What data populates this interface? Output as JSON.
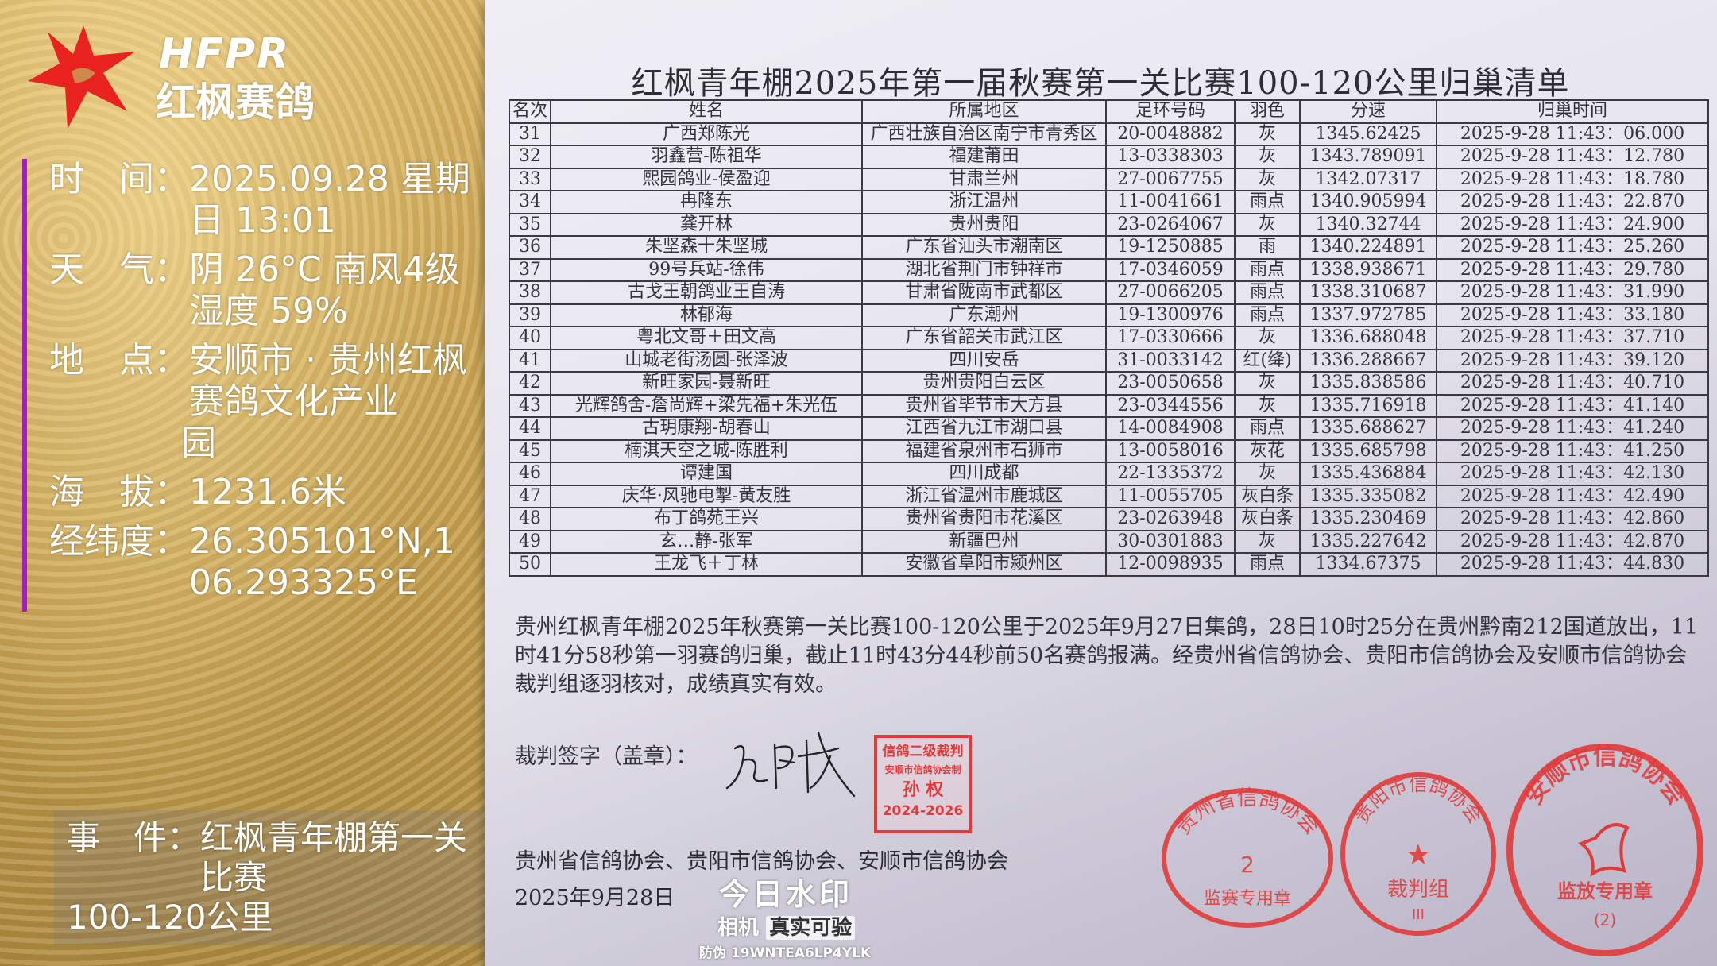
{
  "document": {
    "title": "红枫青年棚2025年第一届秋赛第一关比赛100-120公里归巢清单",
    "columns": [
      "名次",
      "姓名",
      "所属地区",
      "足环号码",
      "羽色",
      "分速",
      "归巢时间"
    ],
    "rows": [
      [
        "31",
        "广西郑陈光",
        "广西壮族自治区南宁市青秀区",
        "20-0048882",
        "灰",
        "1345.62425",
        "2025-9-28 11:43：06.000"
      ],
      [
        "32",
        "羽鑫营-陈祖华",
        "福建莆田",
        "13-0338303",
        "灰",
        "1343.789091",
        "2025-9-28 11:43：12.780"
      ],
      [
        "33",
        "熙园鸽业-侯盈迎",
        "甘肃兰州",
        "27-0067755",
        "灰",
        "1342.07317",
        "2025-9-28 11:43：18.780"
      ],
      [
        "34",
        "冉隆东",
        "浙江温州",
        "11-0041661",
        "雨点",
        "1340.905994",
        "2025-9-28 11:43：22.870"
      ],
      [
        "35",
        "龚开林",
        "贵州贵阳",
        "23-0264067",
        "灰",
        "1340.32744",
        "2025-9-28 11:43：24.900"
      ],
      [
        "36",
        "朱坚森十朱坚城",
        "广东省汕头市潮南区",
        "19-1250885",
        "雨",
        "1340.224891",
        "2025-9-28 11:43：25.260"
      ],
      [
        "37",
        "99号兵站-徐伟",
        "湖北省荆门市钟祥市",
        "17-0346059",
        "雨点",
        "1338.938671",
        "2025-9-28 11:43：29.780"
      ],
      [
        "38",
        "古戈王朝鸽业王自涛",
        "甘肃省陇南市武都区",
        "27-0066205",
        "雨点",
        "1338.310687",
        "2025-9-28 11:43：31.990"
      ],
      [
        "39",
        "林郁海",
        "广东潮州",
        "19-1300976",
        "雨点",
        "1337.972785",
        "2025-9-28 11:43：33.180"
      ],
      [
        "40",
        "粤北文哥＋田文高",
        "广东省韶关市武江区",
        "17-0330666",
        "灰",
        "1336.688048",
        "2025-9-28 11:43：37.710"
      ],
      [
        "41",
        "山城老街汤圆-张泽波",
        "四川安岳",
        "31-0033142",
        "红(绛)",
        "1336.288667",
        "2025-9-28 11:43：39.120"
      ],
      [
        "42",
        "新旺家园-聂新旺",
        "贵州贵阳白云区",
        "23-0050658",
        "灰",
        "1335.838586",
        "2025-9-28 11:43：40.710"
      ],
      [
        "43",
        "光辉鸽舍-詹尚辉+梁先福+朱光伍",
        "贵州省毕节市大方县",
        "23-0344556",
        "灰",
        "1335.716918",
        "2025-9-28 11:43：41.140"
      ],
      [
        "44",
        "古玥康翔-胡春山",
        "江西省九江市湖口县",
        "14-0084908",
        "雨点",
        "1335.688627",
        "2025-9-28 11:43：41.240"
      ],
      [
        "45",
        "楠淇天空之城-陈胜利",
        "福建省泉州市石狮市",
        "13-0058016",
        "灰花",
        "1335.685798",
        "2025-9-28 11:43：41.250"
      ],
      [
        "46",
        "谭建国",
        "四川成都",
        "22-1335372",
        "灰",
        "1335.436884",
        "2025-9-28 11:43：42.130"
      ],
      [
        "47",
        "庆华·风驰电掣-黄友胜",
        "浙江省温州市鹿城区",
        "11-0055705",
        "灰白条",
        "1335.335082",
        "2025-9-28 11:43：42.490"
      ],
      [
        "48",
        "布丁鸽苑王兴",
        "贵州省贵阳市花溪区",
        "23-0263948",
        "灰白条",
        "1335.230469",
        "2025-9-28 11:43：42.860"
      ],
      [
        "49",
        "玄…静-张军",
        "新疆巴州",
        "30-0301883",
        "灰",
        "1335.227642",
        "2025-9-28 11:43：42.870"
      ],
      [
        "50",
        "王龙飞＋丁林",
        "安徽省阜阳市颍州区",
        "12-0098935",
        "雨点",
        "1334.67375",
        "2025-9-28 11:43：44.830"
      ]
    ],
    "paragraph": "贵州红枫青年棚2025年秋赛第一关比赛100-120公里于2025年9月27日集鸽，28日10时25分在贵州黔南212国道放出，11时41分58秒第一羽赛鸽归巢，截止11时43分44秒前50名赛鸽报满。经贵州省信鸽协会、贵阳市信鸽协会及安顺市信鸽协会裁判组逐羽核对，成绩真实有效。",
    "sign_label": "裁判签字（盖章）：",
    "associations": "贵州省信鸽协会、贵阳市信鸽协会、安顺市信鸽协会",
    "date": "2025年9月28日",
    "square_stamp": {
      "line1": "信鸽二级裁判",
      "line2": "安顺市信鸽协会制",
      "line3": "孙 权",
      "line4": "2024-2026"
    },
    "round_stamps": [
      {
        "ring": "贵州省信鸽协会",
        "center": "2",
        "bottom": "监赛专用章"
      },
      {
        "ring": "贵阳市信鸽协会",
        "center": "★",
        "bottom": "裁判组",
        "sub": "III"
      },
      {
        "ring": "安顺市信鸽协会",
        "center": "",
        "bottom": "监放专用章",
        "sub": "(2)"
      }
    ],
    "stamp_color": "#e23a3a"
  },
  "overlay": {
    "logo_en": "HFPR",
    "logo_cn": "红枫赛鸽",
    "logo_color": "#e8231f",
    "accent_bar_color": "#a21ec4",
    "time_label": "时　间：",
    "time_value": "2025.09.28 星期日 13:01",
    "weather_label": "天　气：",
    "weather_value": "阴 26°C  南风4级  湿度 59%",
    "place_label": "地　点：",
    "place_value_1": "安顺市 · 贵州红枫赛鸽文化产业",
    "place_value_2": "园",
    "altitude_label": "海　拔：",
    "altitude_value": "1231.6米",
    "coords_label": "经纬度：",
    "coords_value": "26.305101°N,106.293325°E",
    "event_label": "事　件：",
    "event_value_1": "红枫青年棚第一关比赛",
    "event_value_2": "100-120公里"
  },
  "watermark": {
    "brand": "今日水印",
    "camera": "相机",
    "verify": "真实可验",
    "anti_fake_label": "防伪",
    "anti_fake_code": "19WNTEA6LP4YLK"
  }
}
